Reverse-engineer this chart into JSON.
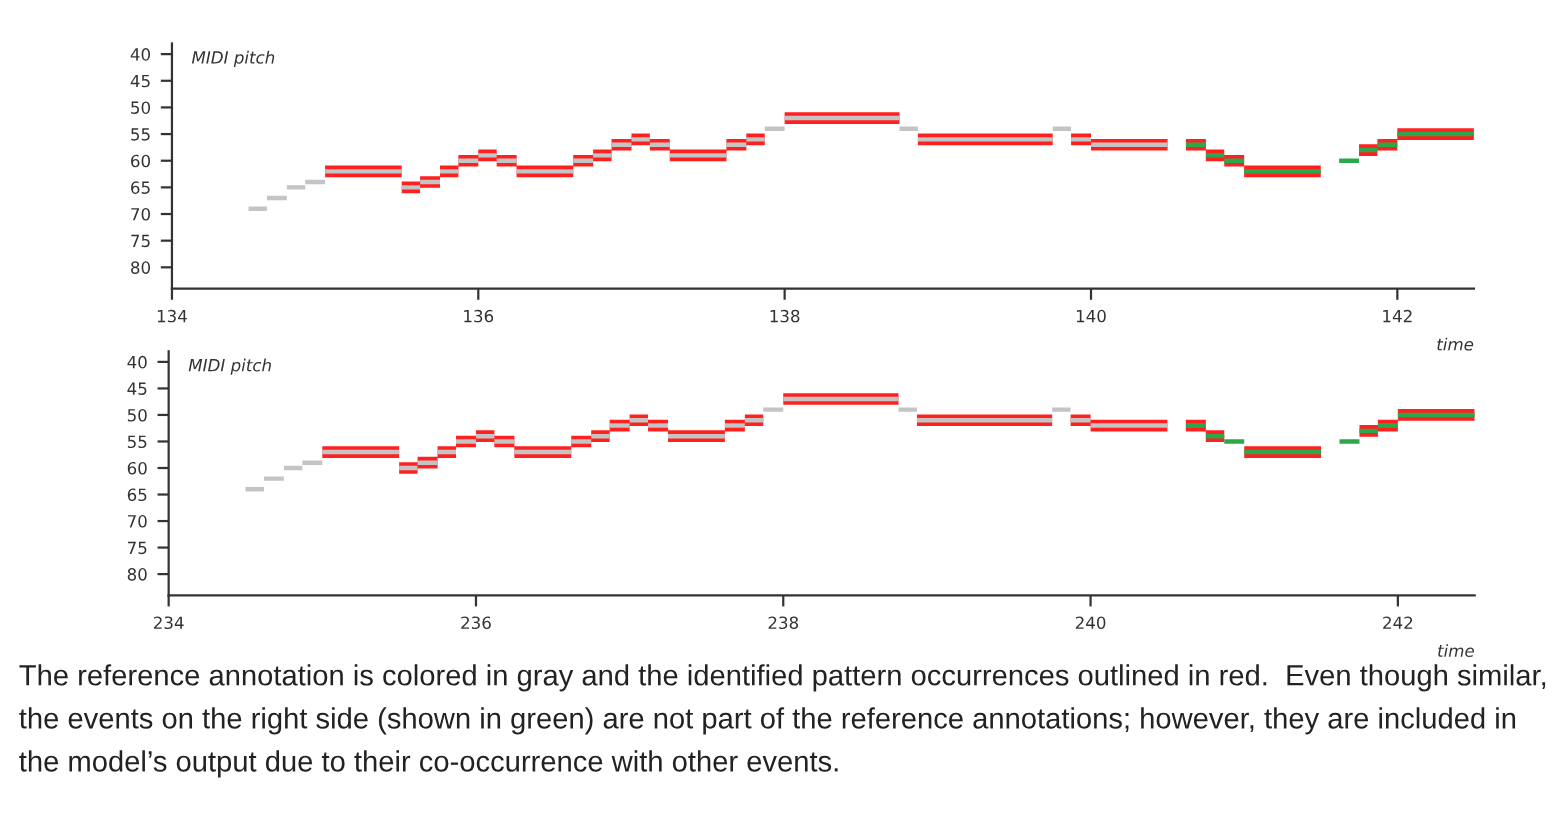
{
  "chart_data": [
    {
      "type": "line",
      "ylabel": "MIDI pitch",
      "xlabel": "time",
      "xlim": [
        134,
        142.5
      ],
      "ylim": [
        84,
        38
      ],
      "xticks": [
        134,
        136,
        138,
        140,
        142
      ],
      "yticks": [
        40,
        45,
        50,
        55,
        60,
        65,
        70,
        75,
        80
      ],
      "series": [
        {
          "type": "line",
          "color": "#ff2020",
          "x": [
            135,
            135.5,
            null,
            135.5,
            135.62,
            null,
            135.62,
            135.75,
            null,
            135.75,
            135.87,
            null,
            135.87,
            136,
            null,
            136,
            136.12,
            null,
            136.12,
            136.25,
            null,
            136.25,
            136.62,
            null,
            136.62,
            136.75,
            null,
            136.75,
            136.87,
            null,
            136.87,
            137,
            null,
            137,
            137.12,
            null,
            137.12,
            137.25,
            null,
            137.25,
            137.62,
            null,
            137.62,
            137.75,
            null,
            137.75,
            137.87,
            null,
            138,
            138.75,
            null,
            138.87,
            139,
            null,
            139,
            139.75,
            null,
            139.87,
            140,
            null,
            140,
            140.5,
            null,
            140.62,
            140.75,
            null,
            140.75,
            140.87,
            null,
            140.87,
            141,
            null,
            141,
            141.5,
            null,
            141.75,
            141.87,
            null,
            141.87,
            142,
            null,
            142,
            142.5
          ],
          "values": [
            62,
            62,
            null,
            65,
            65,
            null,
            64,
            64,
            null,
            62,
            62,
            null,
            60,
            60,
            null,
            59,
            59,
            null,
            60,
            60,
            null,
            62,
            62,
            null,
            60,
            60,
            null,
            59,
            59,
            null,
            57,
            57,
            null,
            56,
            56,
            null,
            57,
            57,
            null,
            59,
            59,
            null,
            57,
            57,
            null,
            56,
            56,
            null,
            52,
            52,
            null,
            56,
            56,
            null,
            56,
            56,
            null,
            56,
            56,
            null,
            57,
            57,
            null,
            57,
            57,
            null,
            59,
            59,
            null,
            60,
            60,
            null,
            62,
            62,
            null,
            58,
            58,
            null,
            57,
            57,
            null,
            55,
            55
          ]
        },
        {
          "type": "line",
          "color": "#c4c4c4",
          "x": [
            134.5,
            134.62,
            null,
            134.62,
            134.75,
            null,
            134.75,
            134.87,
            null,
            134.87,
            135,
            null,
            135,
            135.5,
            null,
            135.5,
            135.62,
            null,
            135.62,
            135.75,
            null,
            135.75,
            135.87,
            null,
            135.87,
            136,
            null,
            136,
            136.12,
            null,
            136.12,
            136.25,
            null,
            136.25,
            136.62,
            null,
            136.62,
            136.75,
            null,
            136.75,
            136.87,
            null,
            136.87,
            137,
            null,
            137,
            137.12,
            null,
            137.12,
            137.25,
            null,
            137.25,
            137.62,
            null,
            137.62,
            137.75,
            null,
            137.75,
            137.87,
            null,
            137.87,
            138,
            null,
            138,
            138.75,
            null,
            138.75,
            138.87,
            null,
            138.87,
            139,
            null,
            139,
            139.75,
            null,
            139.75,
            139.87,
            null,
            139.87,
            140,
            null,
            140,
            140.5
          ],
          "values": [
            69,
            69,
            null,
            67,
            67,
            null,
            65,
            65,
            null,
            64,
            64,
            null,
            62,
            62,
            null,
            65,
            65,
            null,
            64,
            64,
            null,
            62,
            62,
            null,
            60,
            60,
            null,
            59,
            59,
            null,
            60,
            60,
            null,
            62,
            62,
            null,
            60,
            60,
            null,
            59,
            59,
            null,
            57,
            57,
            null,
            56,
            56,
            null,
            57,
            57,
            null,
            59,
            59,
            null,
            57,
            57,
            null,
            56,
            56,
            null,
            54,
            54,
            null,
            52,
            52,
            null,
            54,
            54,
            null,
            56,
            56,
            null,
            56,
            56,
            null,
            54,
            54,
            null,
            56,
            56,
            null,
            57,
            57
          ]
        },
        {
          "type": "line",
          "color": "#2ca84a",
          "x": [
            140.62,
            140.75,
            null,
            140.75,
            140.87,
            null,
            140.87,
            141,
            null,
            141,
            141.5,
            null,
            141.62,
            141.75,
            null,
            141.75,
            141.87,
            null,
            141.87,
            142,
            null,
            142,
            142.5
          ],
          "values": [
            57,
            57,
            null,
            59,
            59,
            null,
            60,
            60,
            null,
            62,
            62,
            null,
            60,
            60,
            null,
            58,
            58,
            null,
            57,
            57,
            null,
            55,
            55
          ]
        }
      ]
    },
    {
      "type": "line",
      "ylabel": "MIDI pitch",
      "xlabel": "time",
      "xlim": [
        234,
        242.5
      ],
      "ylim": [
        84,
        38
      ],
      "xticks": [
        234,
        236,
        238,
        240,
        242
      ],
      "yticks": [
        40,
        45,
        50,
        55,
        60,
        65,
        70,
        75,
        80
      ],
      "series": [
        {
          "type": "line",
          "color": "#ff2020",
          "x": [
            235,
            235.5,
            null,
            235.5,
            235.62,
            null,
            235.62,
            235.75,
            null,
            235.75,
            235.87,
            null,
            235.87,
            236,
            null,
            236,
            236.12,
            null,
            236.12,
            236.25,
            null,
            236.25,
            236.62,
            null,
            236.62,
            236.75,
            null,
            236.75,
            236.87,
            null,
            236.87,
            237,
            null,
            237,
            237.12,
            null,
            237.12,
            237.25,
            null,
            237.25,
            237.62,
            null,
            237.62,
            237.75,
            null,
            237.75,
            237.87,
            null,
            238,
            238.75,
            null,
            238.87,
            239,
            null,
            239,
            239.75,
            null,
            239.87,
            240,
            null,
            240,
            240.5,
            null,
            240.62,
            240.75,
            null,
            240.75,
            240.87,
            null,
            241,
            241.5,
            null,
            241.75,
            241.87,
            null,
            241.87,
            242,
            null,
            242,
            242.5
          ],
          "values": [
            57,
            57,
            null,
            60,
            60,
            null,
            59,
            59,
            null,
            57,
            57,
            null,
            55,
            55,
            null,
            54,
            54,
            null,
            55,
            55,
            null,
            57,
            57,
            null,
            55,
            55,
            null,
            54,
            54,
            null,
            52,
            52,
            null,
            51,
            51,
            null,
            52,
            52,
            null,
            54,
            54,
            null,
            52,
            52,
            null,
            51,
            51,
            null,
            47,
            47,
            null,
            51,
            51,
            null,
            51,
            51,
            null,
            51,
            51,
            null,
            52,
            52,
            null,
            52,
            52,
            null,
            54,
            54,
            null,
            57,
            57,
            null,
            53,
            53,
            null,
            52,
            52,
            null,
            50,
            50
          ]
        },
        {
          "type": "line",
          "color": "#c4c4c4",
          "x": [
            234.5,
            234.62,
            null,
            234.62,
            234.75,
            null,
            234.75,
            234.87,
            null,
            234.87,
            235,
            null,
            235,
            235.5,
            null,
            235.5,
            235.62,
            null,
            235.62,
            235.75,
            null,
            235.75,
            235.87,
            null,
            235.87,
            236,
            null,
            236,
            236.12,
            null,
            236.12,
            236.25,
            null,
            236.25,
            236.62,
            null,
            236.62,
            236.75,
            null,
            236.75,
            236.87,
            null,
            236.87,
            237,
            null,
            237,
            237.12,
            null,
            237.12,
            237.25,
            null,
            237.25,
            237.62,
            null,
            237.62,
            237.75,
            null,
            237.75,
            237.87,
            null,
            237.87,
            238,
            null,
            238,
            238.75,
            null,
            238.75,
            238.87,
            null,
            238.87,
            239,
            null,
            239,
            239.75,
            null,
            239.75,
            239.87,
            null,
            239.87,
            240,
            null,
            240,
            240.5
          ],
          "values": [
            64,
            64,
            null,
            62,
            62,
            null,
            60,
            60,
            null,
            59,
            59,
            null,
            57,
            57,
            null,
            60,
            60,
            null,
            59,
            59,
            null,
            57,
            57,
            null,
            55,
            55,
            null,
            54,
            54,
            null,
            55,
            55,
            null,
            57,
            57,
            null,
            55,
            55,
            null,
            54,
            54,
            null,
            52,
            52,
            null,
            51,
            51,
            null,
            52,
            52,
            null,
            54,
            54,
            null,
            52,
            52,
            null,
            51,
            51,
            null,
            49,
            49,
            null,
            47,
            47,
            null,
            49,
            49,
            null,
            51,
            51,
            null,
            51,
            51,
            null,
            49,
            49,
            null,
            51,
            51,
            null,
            52,
            52
          ]
        },
        {
          "type": "line",
          "color": "#2ca84a",
          "x": [
            240.62,
            240.75,
            null,
            240.75,
            240.87,
            null,
            240.87,
            241,
            null,
            241,
            241.5,
            null,
            241.62,
            241.75,
            null,
            241.75,
            241.87,
            null,
            241.87,
            242,
            null,
            242,
            242.5
          ],
          "values": [
            52,
            52,
            null,
            54,
            54,
            null,
            55,
            55,
            null,
            57,
            57,
            null,
            55,
            55,
            null,
            53,
            53,
            null,
            52,
            52,
            null,
            50,
            50
          ]
        }
      ],
      "annotations": [
        "The reference annotation is colored in gray and the identified pattern occurrences outlined in red.  Even though similar, the events on the right side (shown in green) are not part of the reference annotations; however, they are included in the model’s output due to their co-occurrence with other events."
      ]
    }
  ]
}
